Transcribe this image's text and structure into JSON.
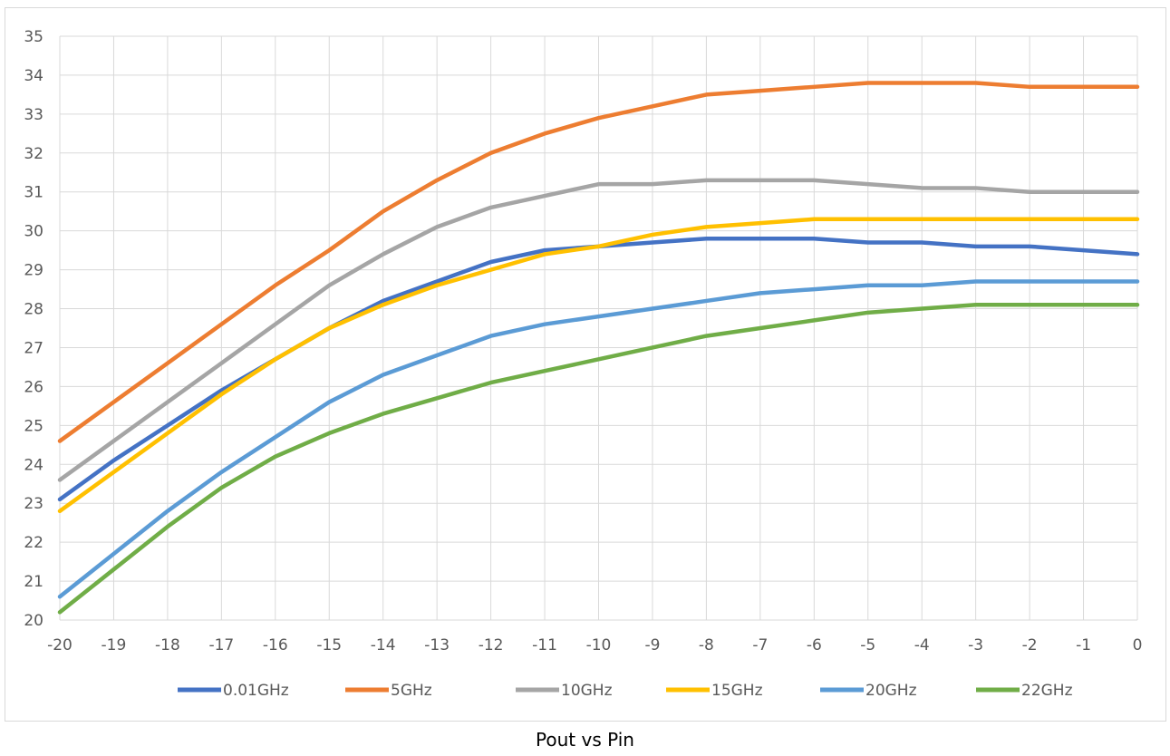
{
  "chart_data": {
    "type": "line",
    "title": "",
    "xlabel": "",
    "ylabel": "",
    "x": [
      -20,
      -19,
      -18,
      -17,
      -16,
      -15,
      -14,
      -13,
      -12,
      -11,
      -10,
      -9,
      -8,
      -7,
      -6,
      -5,
      -4,
      -3,
      -2,
      -1,
      0
    ],
    "xlim": [
      -20,
      0
    ],
    "ylim": [
      20,
      35
    ],
    "ytick_step": 1,
    "grid": true,
    "legend_position": "bottom",
    "series": [
      {
        "name": "0.01GHz",
        "color": "#4472c4",
        "values": [
          23.1,
          24.1,
          25.0,
          25.9,
          26.7,
          27.5,
          28.2,
          28.7,
          29.2,
          29.5,
          29.6,
          29.7,
          29.8,
          29.8,
          29.8,
          29.7,
          29.7,
          29.6,
          29.6,
          29.5,
          29.4
        ]
      },
      {
        "name": "5GHz",
        "color": "#ed7d31",
        "values": [
          24.6,
          25.6,
          26.6,
          27.6,
          28.6,
          29.5,
          30.5,
          31.3,
          32.0,
          32.5,
          32.9,
          33.2,
          33.5,
          33.6,
          33.7,
          33.8,
          33.8,
          33.8,
          33.7,
          33.7,
          33.7
        ]
      },
      {
        "name": "10GHz",
        "color": "#a5a5a5",
        "values": [
          23.6,
          24.6,
          25.6,
          26.6,
          27.6,
          28.6,
          29.4,
          30.1,
          30.6,
          30.9,
          31.2,
          31.2,
          31.3,
          31.3,
          31.3,
          31.2,
          31.1,
          31.1,
          31.0,
          31.0,
          31.0
        ]
      },
      {
        "name": "15GHz",
        "color": "#ffc000",
        "values": [
          22.8,
          23.8,
          24.8,
          25.8,
          26.7,
          27.5,
          28.1,
          28.6,
          29.0,
          29.4,
          29.6,
          29.9,
          30.1,
          30.2,
          30.3,
          30.3,
          30.3,
          30.3,
          30.3,
          30.3,
          30.3
        ]
      },
      {
        "name": "20GHz",
        "color": "#5b9bd5",
        "values": [
          20.6,
          21.7,
          22.8,
          23.8,
          24.7,
          25.6,
          26.3,
          26.8,
          27.3,
          27.6,
          27.8,
          28.0,
          28.2,
          28.4,
          28.5,
          28.6,
          28.6,
          28.7,
          28.7,
          28.7,
          28.7
        ]
      },
      {
        "name": "22GHz",
        "color": "#70ad47",
        "values": [
          20.2,
          21.3,
          22.4,
          23.4,
          24.2,
          24.8,
          25.3,
          25.7,
          26.1,
          26.4,
          26.7,
          27.0,
          27.3,
          27.5,
          27.7,
          27.9,
          28.0,
          28.1,
          28.1,
          28.1,
          28.1
        ]
      }
    ]
  },
  "caption": "Pout vs Pin",
  "colors": {
    "grid": "#d9d9d9",
    "axis_text": "#595959",
    "border": "#d9d9d9"
  }
}
